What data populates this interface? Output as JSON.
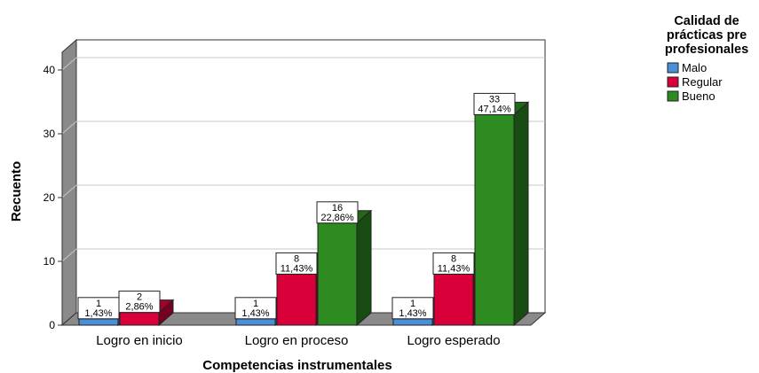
{
  "chart_data": {
    "type": "bar",
    "title": "",
    "xlabel": "Competencias instrumentales",
    "ylabel": "Recuento",
    "ylim": [
      0,
      40
    ],
    "yticks": [
      "0",
      "10",
      "20",
      "30",
      "40"
    ],
    "ytick_values": [
      0,
      10,
      20,
      30,
      40
    ],
    "categories": [
      "Logro en inicio",
      "Logro en proceso",
      "Logro esperado"
    ],
    "legend": {
      "title": "Calidad de prácticas pre profesionales",
      "title_lines": [
        "Calidad de",
        "prácticas pre",
        "profesionales"
      ],
      "placement": "top-right"
    },
    "grid": true,
    "three_d": true,
    "series": [
      {
        "name": "Malo",
        "color": "#4a8fd8",
        "values": [
          1,
          1,
          1
        ],
        "labels": [
          {
            "count": "1",
            "pct": "1,43%"
          },
          {
            "count": "1",
            "pct": "1,43%"
          },
          {
            "count": "1",
            "pct": "1,43%"
          }
        ]
      },
      {
        "name": "Regular",
        "color": "#d9003a",
        "values": [
          2,
          8,
          8
        ],
        "labels": [
          {
            "count": "2",
            "pct": "2,86%"
          },
          {
            "count": "8",
            "pct": "11,43%"
          },
          {
            "count": "8",
            "pct": "11,43%"
          }
        ]
      },
      {
        "name": "Bueno",
        "color": "#2e8b22",
        "values": [
          0,
          16,
          33
        ],
        "labels": [
          null,
          {
            "count": "16",
            "pct": "22,86%"
          },
          {
            "count": "33",
            "pct": "47,14%"
          }
        ]
      }
    ]
  }
}
